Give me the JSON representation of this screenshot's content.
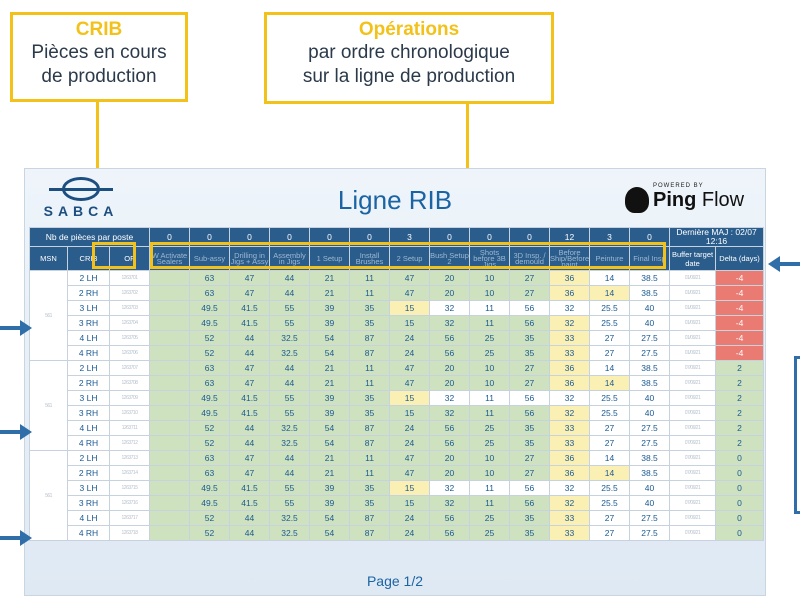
{
  "callouts": {
    "crib": {
      "title": "CRIB",
      "line1": "Pièces en cours",
      "line2": "de production"
    },
    "ops": {
      "title": "Opérations",
      "line1": "par ordre chronologique",
      "line2": "sur la ligne de production"
    }
  },
  "logo": {
    "text": "SABCA"
  },
  "screen": {
    "title": "Ligne RIB",
    "page": "Page 1/2"
  },
  "pingflow": {
    "powered": "POWERED BY",
    "brand_a": "Ping",
    "brand_b": " Flow"
  },
  "table": {
    "pieces_label": "Nb de pièces par poste",
    "counts": [
      "0",
      "0",
      "0",
      "0",
      "0",
      "0",
      "3",
      "0",
      "0",
      "0",
      "12",
      "3",
      "0"
    ],
    "last_update": "Dernière MAJ : 02/07 12:16",
    "col_msn": "MSN",
    "col_crib": "CRIB",
    "col_of": "OF",
    "op_headers": [
      "W Activate Sealers",
      "Sub-assy",
      "Drilling in Jigs + Assy",
      "Assembly in Jigs",
      "1 Setup",
      "Install Brushes",
      "2 Setup",
      "Bush Setup 2",
      "Shots before 3B Jigs",
      "3D Insp. / demould",
      "Before Ship/Before paint",
      "Peinture",
      "Final Insp"
    ],
    "col_buffer": "Buffer target date",
    "col_delta": "Delta (days)",
    "groups": [
      {
        "msn": "561",
        "delta": "-4",
        "rows": [
          {
            "crib": "2 LH",
            "of": "1263701",
            "vals": [
              "",
              "63",
              "47",
              "44",
              "21",
              "11",
              "47",
              "20",
              "10",
              "27",
              "36",
              "14",
              "38.5"
            ],
            "buffer": "01/06/21"
          },
          {
            "crib": "2 RH",
            "of": "1263702",
            "vals": [
              "",
              "63",
              "47",
              "44",
              "21",
              "11",
              "47",
              "20",
              "10",
              "27",
              "36",
              "14",
              "38.5"
            ],
            "buffer": "01/06/21"
          },
          {
            "crib": "3 LH",
            "of": "1263703",
            "vals": [
              "",
              "49.5",
              "41.5",
              "55",
              "39",
              "35",
              "15",
              "32",
              "11",
              "56",
              "32",
              "25.5",
              "40"
            ],
            "buffer": "01/06/21"
          },
          {
            "crib": "3 RH",
            "of": "1263704",
            "vals": [
              "",
              "49.5",
              "41.5",
              "55",
              "39",
              "35",
              "15",
              "32",
              "11",
              "56",
              "32",
              "25.5",
              "40"
            ],
            "buffer": "01/06/21"
          },
          {
            "crib": "4 LH",
            "of": "1263705",
            "vals": [
              "",
              "52",
              "44",
              "32.5",
              "54",
              "87",
              "24",
              "56",
              "25",
              "35",
              "33",
              "27",
              "27.5"
            ],
            "buffer": "01/06/21"
          },
          {
            "crib": "4 RH",
            "of": "1263706",
            "vals": [
              "",
              "52",
              "44",
              "32.5",
              "54",
              "87",
              "24",
              "56",
              "25",
              "35",
              "33",
              "27",
              "27.5"
            ],
            "buffer": "01/06/21"
          }
        ]
      },
      {
        "msn": "561",
        "delta": "2",
        "rows": [
          {
            "crib": "2 LH",
            "of": "1263707",
            "vals": [
              "",
              "63",
              "47",
              "44",
              "21",
              "11",
              "47",
              "20",
              "10",
              "27",
              "36",
              "14",
              "38.5"
            ],
            "buffer": "07/06/21"
          },
          {
            "crib": "2 RH",
            "of": "1263708",
            "vals": [
              "",
              "63",
              "47",
              "44",
              "21",
              "11",
              "47",
              "20",
              "10",
              "27",
              "36",
              "14",
              "38.5"
            ],
            "buffer": "07/06/21"
          },
          {
            "crib": "3 LH",
            "of": "1263709",
            "vals": [
              "",
              "49.5",
              "41.5",
              "55",
              "39",
              "35",
              "15",
              "32",
              "11",
              "56",
              "32",
              "25.5",
              "40"
            ],
            "buffer": "07/06/21"
          },
          {
            "crib": "3 RH",
            "of": "1263710",
            "vals": [
              "",
              "49.5",
              "41.5",
              "55",
              "39",
              "35",
              "15",
              "32",
              "11",
              "56",
              "32",
              "25.5",
              "40"
            ],
            "buffer": "07/06/21"
          },
          {
            "crib": "4 LH",
            "of": "1263711",
            "vals": [
              "",
              "52",
              "44",
              "32.5",
              "54",
              "87",
              "24",
              "56",
              "25",
              "35",
              "33",
              "27",
              "27.5"
            ],
            "buffer": "07/06/21"
          },
          {
            "crib": "4 RH",
            "of": "1263712",
            "vals": [
              "",
              "52",
              "44",
              "32.5",
              "54",
              "87",
              "24",
              "56",
              "25",
              "35",
              "33",
              "27",
              "27.5"
            ],
            "buffer": "07/06/21"
          }
        ]
      },
      {
        "msn": "561",
        "delta": "0",
        "rows": [
          {
            "crib": "2 LH",
            "of": "1263713",
            "vals": [
              "",
              "63",
              "47",
              "44",
              "21",
              "11",
              "47",
              "20",
              "10",
              "27",
              "36",
              "14",
              "38.5"
            ],
            "buffer": "07/06/21"
          },
          {
            "crib": "2 RH",
            "of": "1263714",
            "vals": [
              "",
              "63",
              "47",
              "44",
              "21",
              "11",
              "47",
              "20",
              "10",
              "27",
              "36",
              "14",
              "38.5"
            ],
            "buffer": "07/06/21"
          },
          {
            "crib": "3 LH",
            "of": "1263715",
            "vals": [
              "",
              "49.5",
              "41.5",
              "55",
              "39",
              "35",
              "15",
              "32",
              "11",
              "56",
              "32",
              "25.5",
              "40"
            ],
            "buffer": "07/06/21"
          },
          {
            "crib": "3 RH",
            "of": "1263716",
            "vals": [
              "",
              "49.5",
              "41.5",
              "55",
              "39",
              "35",
              "15",
              "32",
              "11",
              "56",
              "32",
              "25.5",
              "40"
            ],
            "buffer": "07/06/21"
          },
          {
            "crib": "4 LH",
            "of": "1263717",
            "vals": [
              "",
              "52",
              "44",
              "32.5",
              "54",
              "87",
              "24",
              "56",
              "25",
              "35",
              "33",
              "27",
              "27.5"
            ],
            "buffer": "07/06/21"
          },
          {
            "crib": "4 RH",
            "of": "1263718",
            "vals": [
              "",
              "52",
              "44",
              "32.5",
              "54",
              "87",
              "24",
              "56",
              "25",
              "35",
              "33",
              "27",
              "27.5"
            ],
            "buffer": "07/06/21"
          }
        ]
      }
    ],
    "cell_colors": {
      "2 LH": [
        "g",
        "g",
        "g",
        "g",
        "g",
        "g",
        "g",
        "g",
        "g",
        "g",
        "y",
        "w",
        "w"
      ],
      "2 RH": [
        "g",
        "g",
        "g",
        "g",
        "g",
        "g",
        "g",
        "g",
        "g",
        "g",
        "y",
        "y",
        "w"
      ],
      "3 LH": [
        "g",
        "g",
        "g",
        "g",
        "g",
        "g",
        "y",
        "w",
        "w",
        "w",
        "w",
        "w",
        "w"
      ],
      "3 RH": [
        "g",
        "g",
        "g",
        "g",
        "g",
        "g",
        "g",
        "g",
        "g",
        "g",
        "y",
        "w",
        "w"
      ],
      "4 LH": [
        "g",
        "g",
        "g",
        "g",
        "g",
        "g",
        "g",
        "g",
        "g",
        "g",
        "y",
        "w",
        "w"
      ],
      "4 RH": [
        "g",
        "g",
        "g",
        "g",
        "g",
        "g",
        "g",
        "g",
        "g",
        "g",
        "y",
        "w",
        "w"
      ]
    }
  }
}
